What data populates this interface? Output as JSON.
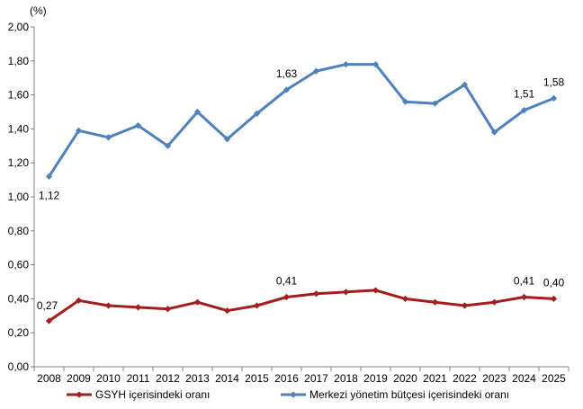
{
  "chart_data": {
    "type": "line",
    "unit": "(%)",
    "categories": [
      "2008",
      "2009",
      "2010",
      "2011",
      "2012",
      "2013",
      "2014",
      "2015",
      "2016",
      "2017",
      "2018",
      "2019",
      "2020",
      "2021",
      "2022",
      "2023",
      "2024",
      "2025"
    ],
    "ylim": [
      0,
      2.0
    ],
    "yticks": [
      "0,00",
      "0,20",
      "0,40",
      "0,60",
      "0,80",
      "1,00",
      "1,20",
      "1,40",
      "1,60",
      "1,80",
      "2,00"
    ],
    "grid": false,
    "legend_position": "bottom",
    "series": [
      {
        "name": "GSYH içerisindeki oranı",
        "color": "#A31D1D",
        "values": [
          0.27,
          0.39,
          0.36,
          0.35,
          0.34,
          0.38,
          0.33,
          0.36,
          0.41,
          0.43,
          0.44,
          0.45,
          0.4,
          0.38,
          0.36,
          0.38,
          0.41,
          0.4
        ],
        "labels": [
          {
            "index": 0,
            "text": "0,27",
            "placement": "above-left"
          },
          {
            "index": 8,
            "text": "0,41",
            "placement": "above"
          },
          {
            "index": 16,
            "text": "0,41",
            "placement": "above"
          },
          {
            "index": 17,
            "text": "0,40",
            "placement": "above"
          }
        ]
      },
      {
        "name": "Merkezi yönetim bütçesi içerisindeki oranı",
        "color": "#4F81BD",
        "values": [
          1.12,
          1.39,
          1.35,
          1.42,
          1.3,
          1.5,
          1.34,
          1.49,
          1.63,
          1.74,
          1.78,
          1.78,
          1.56,
          1.55,
          1.66,
          1.38,
          1.51,
          1.58
        ],
        "labels": [
          {
            "index": 0,
            "text": "1,12",
            "placement": "below"
          },
          {
            "index": 8,
            "text": "1,63",
            "placement": "above"
          },
          {
            "index": 16,
            "text": "1,51",
            "placement": "above"
          },
          {
            "index": 17,
            "text": "1,58",
            "placement": "above"
          }
        ]
      }
    ]
  }
}
